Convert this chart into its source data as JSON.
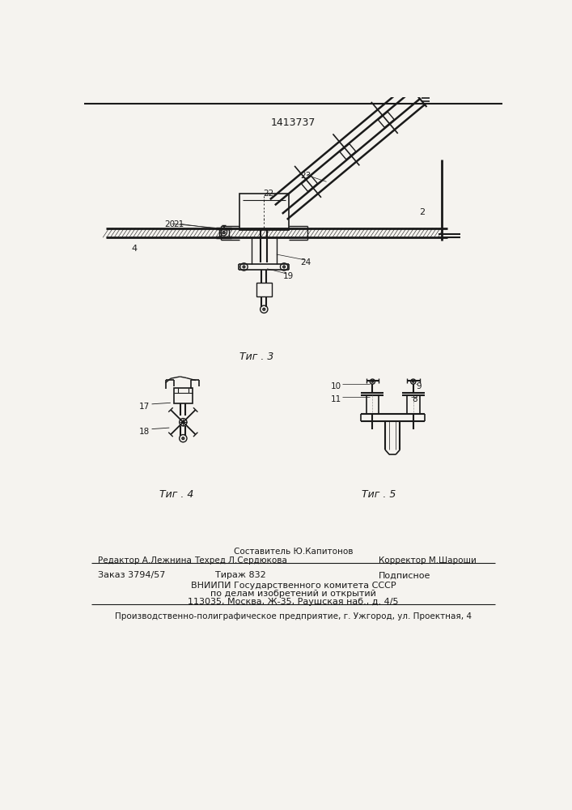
{
  "patent_number": "1413737",
  "bg_color": "#f5f3ef",
  "line_color": "#1a1a1a",
  "text_color": "#1a1a1a",
  "fig3_caption": "Τиг . 3",
  "fig4_caption": "Τиг . 4",
  "fig5_caption": "Τиг . 5",
  "footer": {
    "sostavitel": "Составитель Ю.Капитонов",
    "redaktor": "Редактор А.Лежнина",
    "tehred": "Техред Л.Сердюкова",
    "korrektor": "Корректор М.Шароши",
    "zakaz": "Заказ 3794/57",
    "tirazh": "Тираж 832",
    "podpisnoe": "Подписное",
    "vniiipi_line1": "ВНИИПИ Государственного комитета СССР",
    "vniiipi_line2": "по делам изобретений и открытий",
    "vniiipi_line3": "113035, Москва, Ж-35, Раушская наб., д. 4/5",
    "predpriyatie": "Производственно-полиграфическое предприятие, г. Ужгород, ул. Проектная, 4"
  }
}
